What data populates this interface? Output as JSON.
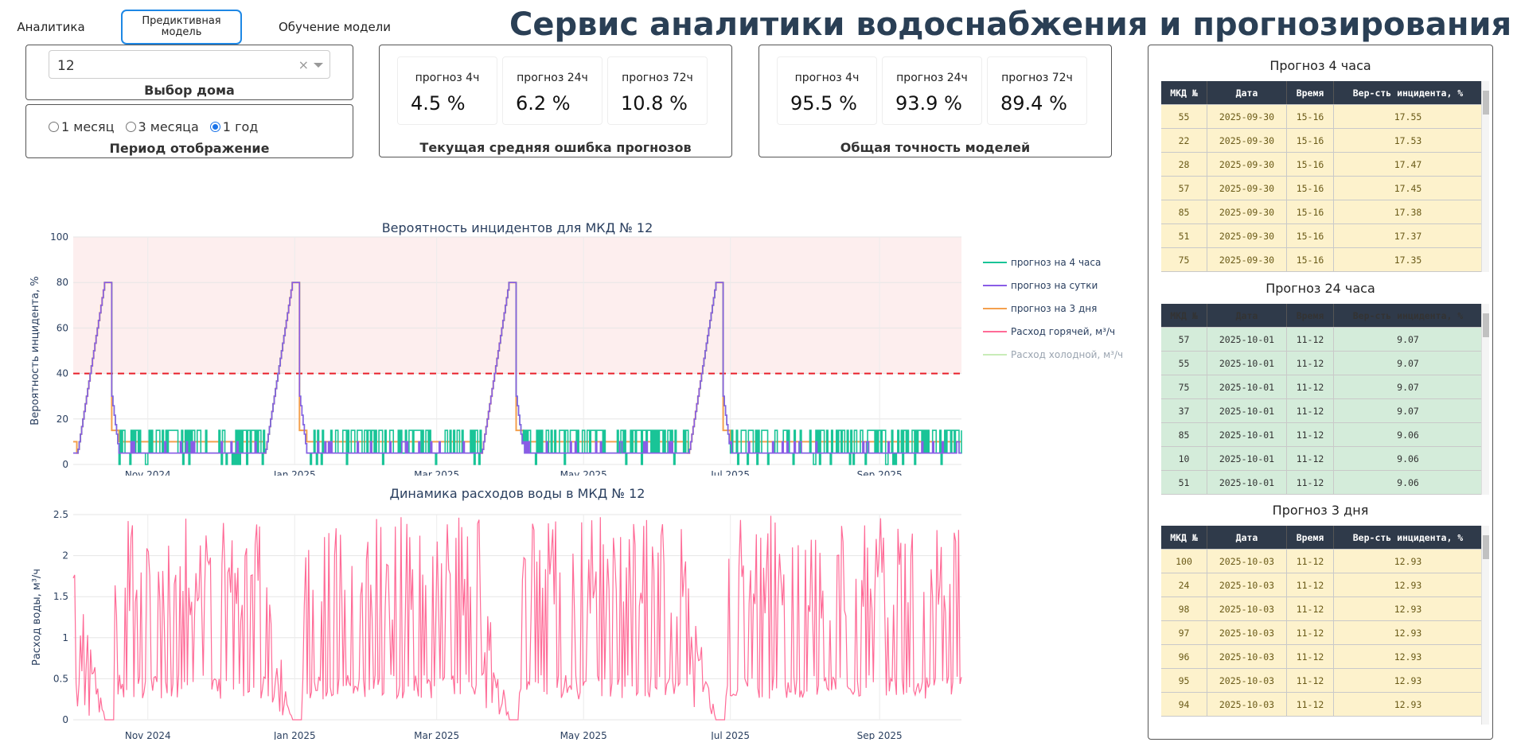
{
  "tabs": {
    "analytics": "Аналитика",
    "predictive": "Предиктивная модель",
    "training": "Обучение модели"
  },
  "title": "Сервис аналитики водоснабжения и прогнозирования",
  "house": {
    "value": "12",
    "label": "Выбор дома",
    "clear": "×"
  },
  "period": {
    "label": "Период отображение",
    "options": [
      "1 месяц",
      "3 месяца",
      "1 год"
    ],
    "selected": "1 год"
  },
  "error": {
    "label": "Текущая средняя ошибка прогнозов",
    "items": [
      {
        "name": "прогноз 4ч",
        "value": "4.5 %"
      },
      {
        "name": "прогноз 24ч",
        "value": "6.2 %"
      },
      {
        "name": "прогноз 72ч",
        "value": "10.8 %"
      }
    ]
  },
  "accuracy": {
    "label": "Общая точность моделей",
    "items": [
      {
        "name": "прогноз 4ч",
        "value": "95.5 %"
      },
      {
        "name": "прогноз 24ч",
        "value": "93.9 %"
      },
      {
        "name": "прогноз 72ч",
        "value": "89.4 %"
      }
    ]
  },
  "colors": {
    "h4": "#19c497",
    "h24": "#8a5ce6",
    "h72": "#f4a04e",
    "hot": "#ff6b97",
    "cold": "#c8ecb8",
    "threshold": "#e8202a",
    "zone": "#fdeeee"
  },
  "tables": {
    "headers": [
      "МКД №",
      "Дата",
      "Время",
      "Вер-сть инцидента, %"
    ],
    "t4": {
      "title": "Прогноз 4 часа",
      "rows": [
        [
          "55",
          "2025-09-30",
          "15-16",
          "17.55"
        ],
        [
          "22",
          "2025-09-30",
          "15-16",
          "17.53"
        ],
        [
          "28",
          "2025-09-30",
          "15-16",
          "17.47"
        ],
        [
          "57",
          "2025-09-30",
          "15-16",
          "17.45"
        ],
        [
          "85",
          "2025-09-30",
          "15-16",
          "17.38"
        ],
        [
          "51",
          "2025-09-30",
          "15-16",
          "17.37"
        ],
        [
          "75",
          "2025-09-30",
          "15-16",
          "17.35"
        ]
      ]
    },
    "t24": {
      "title": "Прогноз 24 часа",
      "rows": [
        [
          "57",
          "2025-10-01",
          "11-12",
          "9.07"
        ],
        [
          "55",
          "2025-10-01",
          "11-12",
          "9.07"
        ],
        [
          "75",
          "2025-10-01",
          "11-12",
          "9.07"
        ],
        [
          "37",
          "2025-10-01",
          "11-12",
          "9.07"
        ],
        [
          "85",
          "2025-10-01",
          "11-12",
          "9.06"
        ],
        [
          "10",
          "2025-10-01",
          "11-12",
          "9.06"
        ],
        [
          "51",
          "2025-10-01",
          "11-12",
          "9.06"
        ]
      ]
    },
    "t72": {
      "title": "Прогноз 3 дня",
      "rows": [
        [
          "100",
          "2025-10-03",
          "11-12",
          "12.93"
        ],
        [
          "24",
          "2025-10-03",
          "11-12",
          "12.93"
        ],
        [
          "98",
          "2025-10-03",
          "11-12",
          "12.93"
        ],
        [
          "97",
          "2025-10-03",
          "11-12",
          "12.93"
        ],
        [
          "96",
          "2025-10-03",
          "11-12",
          "12.93"
        ],
        [
          "95",
          "2025-10-03",
          "11-12",
          "12.93"
        ],
        [
          "94",
          "2025-10-03",
          "11-12",
          "12.93"
        ]
      ]
    }
  },
  "chart_data": [
    {
      "type": "line",
      "title": "Вероятность инцидентов для МКД № 12",
      "ylabel": "Вероятность инцидента, %",
      "ylim": [
        0,
        100
      ],
      "yticks": [
        "0",
        "20",
        "40",
        "60",
        "80",
        "100"
      ],
      "xticks": [
        "Nov 2024",
        "Jan 2025",
        "Mar 2025",
        "May 2025",
        "Jul 2025",
        "Sep 2025"
      ],
      "threshold": 40,
      "legend_position": "right",
      "legend": [
        "прогноз на 4 часа",
        "прогноз на сутки",
        "прогноз на 3 дня",
        "Расход горячей, м³/ч",
        "Расход холодной, м³/ч"
      ],
      "peaks_x": [
        "2024-10-14",
        "2024-12-31",
        "2025-03-31",
        "2025-06-25"
      ],
      "peak_value": 80,
      "baseline": {
        "h4": [
          5,
          15
        ],
        "h24": 5,
        "h72": 10
      }
    },
    {
      "type": "line",
      "title": "Динамика расходов воды в МКД № 12",
      "ylabel": "Расход воды, м³/ч",
      "ylim": [
        0,
        2.5
      ],
      "yticks": [
        "0",
        "0.5",
        "1",
        "1.5",
        "2",
        "2.5"
      ],
      "xticks": [
        "Nov 2024",
        "Jan 2025",
        "Mar 2025",
        "May 2025",
        "Jul 2025",
        "Sep 2025"
      ],
      "series": [
        {
          "name": "Расход горячей, м³/ч",
          "range": [
            0.25,
            2.5
          ]
        }
      ]
    }
  ]
}
